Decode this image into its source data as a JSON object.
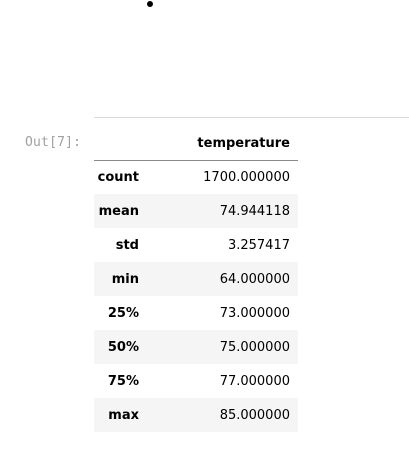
{
  "cell": {
    "prompt": "Out[7]:"
  },
  "dataframe": {
    "columns": [
      "temperature"
    ],
    "rows": [
      {
        "index": "count",
        "value": "1700.000000"
      },
      {
        "index": "mean",
        "value": "74.944118"
      },
      {
        "index": "std",
        "value": "3.257417"
      },
      {
        "index": "min",
        "value": "64.000000"
      },
      {
        "index": "25%",
        "value": "73.000000"
      },
      {
        "index": "50%",
        "value": "75.000000"
      },
      {
        "index": "75%",
        "value": "77.000000"
      },
      {
        "index": "max",
        "value": "85.000000"
      }
    ]
  }
}
